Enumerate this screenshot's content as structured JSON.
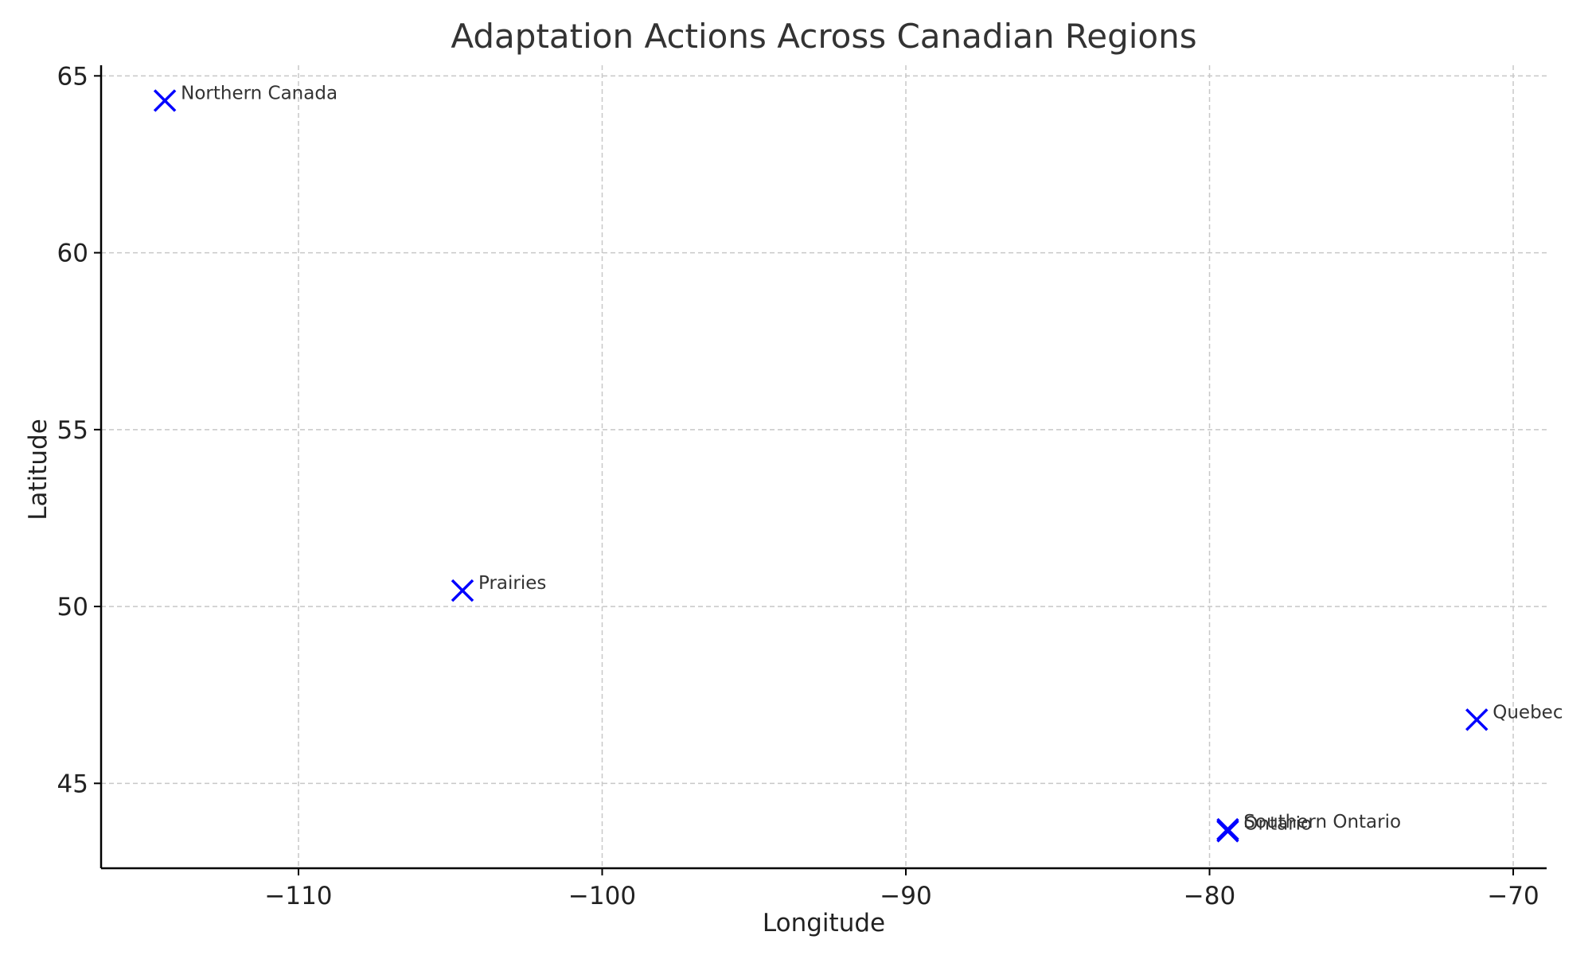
{
  "chart_data": {
    "type": "scatter",
    "title": "Adaptation Actions Across Canadian Regions",
    "xlabel": "Longitude",
    "ylabel": "Latitude",
    "xlim": [
      -116.5,
      -68.9
    ],
    "ylim": [
      42.6,
      65.3
    ],
    "xticks": [
      -110,
      -100,
      -90,
      -80,
      -70
    ],
    "xtick_labels": [
      "−110",
      "−100",
      "−90",
      "−80",
      "−70"
    ],
    "yticks": [
      45,
      50,
      55,
      60,
      65
    ],
    "ytick_labels": [
      "45",
      "50",
      "55",
      "60",
      "65"
    ],
    "grid": true,
    "marker": "x",
    "marker_color": "#0000ff",
    "points": [
      {
        "label": "Northern Canada",
        "x": -114.4,
        "y": 64.3
      },
      {
        "label": "Prairies",
        "x": -104.6,
        "y": 50.45
      },
      {
        "label": "Quebec",
        "x": -71.2,
        "y": 46.8
      },
      {
        "label": "Southern Ontario",
        "x": -79.4,
        "y": 43.7
      },
      {
        "label": "Ontario",
        "x": -79.4,
        "y": 43.65
      }
    ]
  }
}
